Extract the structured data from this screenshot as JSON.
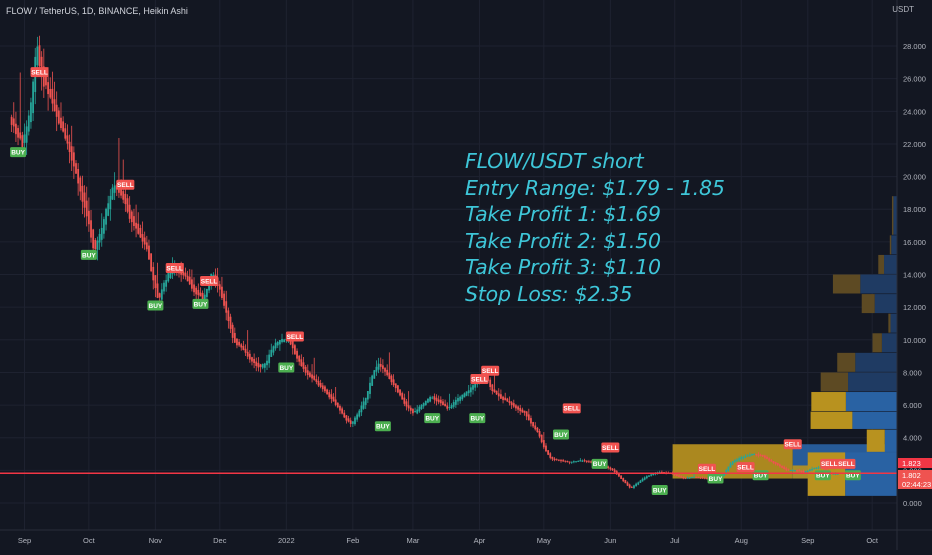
{
  "header": {
    "symbol_title": "FLOW / TetherUS, 1D, BINANCE, Heikin Ashi",
    "currency": "USDT"
  },
  "annotation": {
    "lines": [
      "FLOW/USDT short",
      "Entry Range: $1.79 - 1.85",
      "Take Profit 1: $1.69",
      "Take Profit 2: $1.50",
      "Take Profit 3: $1.10",
      "Stop Loss: $2.35"
    ],
    "color": "#3ec6d8"
  },
  "price_labels": {
    "upper": "1.823",
    "current": "1.802",
    "countdown": "02:44:23"
  },
  "colors": {
    "background": "#131722",
    "grid": "#1e2230",
    "up_candle": "#26a69a",
    "down_candle": "#ef5350",
    "buy_label": "#4caf50",
    "sell_label": "#f05350",
    "support_line": "#f23645",
    "profile_blue": "#2962a3",
    "profile_gold": "#b8921f",
    "profile_dark_gold": "#5d4a23",
    "profile_dark_blue": "#1f3b63"
  },
  "chart_data": {
    "type": "candlestick",
    "title": "FLOW / TetherUS, 1D, BINANCE, Heikin Ashi",
    "ylabel": "USDT",
    "y_ticks": [
      "0.000",
      "2.000",
      "4.000",
      "6.000",
      "8.000",
      "10.000",
      "12.000",
      "14.000",
      "16.000",
      "18.000",
      "20.000",
      "22.000",
      "24.000",
      "26.000",
      "28.000"
    ],
    "y_tick_values": [
      0,
      2,
      4,
      6,
      8,
      10,
      12,
      14,
      16,
      18,
      20,
      22,
      24,
      26,
      28
    ],
    "ylim": [
      -1.3,
      31.5
    ],
    "x_ticks": [
      "Sep",
      "Oct",
      "Nov",
      "Dec",
      "2022",
      "Feb",
      "Mar",
      "Apr",
      "May",
      "Jun",
      "Jul",
      "Aug",
      "Sep",
      "Oct"
    ],
    "x_tick_days": [
      0,
      30,
      61,
      91,
      122,
      153,
      181,
      212,
      242,
      273,
      303,
      334,
      365,
      395
    ],
    "x_start": "2021-09-01",
    "x_end": "2022-10-27",
    "price_path": [
      [
        -6,
        23.5
      ],
      [
        0,
        22.0
      ],
      [
        4,
        24.5
      ],
      [
        6,
        28.0
      ],
      [
        9,
        26.0
      ],
      [
        11,
        25.5
      ],
      [
        14,
        24.5
      ],
      [
        18,
        23.0
      ],
      [
        22,
        21.5
      ],
      [
        26,
        19.5
      ],
      [
        30,
        17.5
      ],
      [
        33,
        15.5
      ],
      [
        36,
        16.5
      ],
      [
        40,
        18.5
      ],
      [
        42,
        19.5
      ],
      [
        46,
        19.0
      ],
      [
        50,
        17.5
      ],
      [
        54,
        16.5
      ],
      [
        58,
        15.5
      ],
      [
        60,
        14.0
      ],
      [
        63,
        12.5
      ],
      [
        66,
        13.5
      ],
      [
        70,
        14.5
      ],
      [
        75,
        14.0
      ],
      [
        80,
        13.0
      ],
      [
        84,
        12.5
      ],
      [
        88,
        14.0
      ],
      [
        92,
        13.0
      ],
      [
        95,
        11.5
      ],
      [
        98,
        10.0
      ],
      [
        102,
        9.5
      ],
      [
        106,
        8.8
      ],
      [
        110,
        8.3
      ],
      [
        113,
        8.5
      ],
      [
        116,
        9.5
      ],
      [
        120,
        10.0
      ],
      [
        124,
        10.0
      ],
      [
        128,
        8.8
      ],
      [
        132,
        8.0
      ],
      [
        136,
        7.5
      ],
      [
        140,
        7.0
      ],
      [
        146,
        6.0
      ],
      [
        150,
        5.2
      ],
      [
        153,
        4.8
      ],
      [
        156,
        5.5
      ],
      [
        160,
        6.5
      ],
      [
        163,
        8.0
      ],
      [
        166,
        8.5
      ],
      [
        170,
        7.8
      ],
      [
        174,
        7.0
      ],
      [
        178,
        6.0
      ],
      [
        182,
        5.5
      ],
      [
        186,
        6.0
      ],
      [
        190,
        6.5
      ],
      [
        194,
        6.2
      ],
      [
        198,
        5.8
      ],
      [
        202,
        6.3
      ],
      [
        207,
        6.8
      ],
      [
        212,
        7.5
      ],
      [
        215,
        8.0
      ],
      [
        218,
        7.0
      ],
      [
        222,
        6.5
      ],
      [
        226,
        6.2
      ],
      [
        230,
        5.8
      ],
      [
        234,
        5.5
      ],
      [
        237,
        4.8
      ],
      [
        240,
        4.3
      ],
      [
        243,
        3.3
      ],
      [
        246,
        2.7
      ],
      [
        250,
        2.6
      ],
      [
        255,
        2.5
      ],
      [
        260,
        2.6
      ],
      [
        265,
        2.5
      ],
      [
        270,
        2.3
      ],
      [
        275,
        2.0
      ],
      [
        280,
        1.3
      ],
      [
        283,
        0.9
      ],
      [
        286,
        1.2
      ],
      [
        290,
        1.6
      ],
      [
        296,
        1.9
      ],
      [
        302,
        1.8
      ],
      [
        308,
        1.5
      ],
      [
        312,
        1.6
      ],
      [
        318,
        1.5
      ],
      [
        322,
        1.5
      ],
      [
        326,
        1.7
      ],
      [
        330,
        2.5
      ],
      [
        335,
        2.8
      ],
      [
        340,
        3.0
      ],
      [
        344,
        2.9
      ],
      [
        348,
        2.6
      ],
      [
        352,
        2.3
      ],
      [
        356,
        2.0
      ],
      [
        360,
        2.0
      ],
      [
        364,
        1.9
      ],
      [
        368,
        2.1
      ],
      [
        372,
        2.2
      ],
      [
        376,
        1.8
      ],
      [
        379,
        1.8
      ]
    ],
    "buy_signals": [
      {
        "label": "BUY",
        "date": "2021-08-29",
        "price": 21.5
      },
      {
        "label": "BUY",
        "date": "2021-10-01",
        "price": 15.2
      },
      {
        "label": "BUY",
        "date": "2021-11-01",
        "price": 12.1
      },
      {
        "label": "BUY",
        "date": "2021-11-22",
        "price": 12.2
      },
      {
        "label": "BUY",
        "date": "2022-01-01",
        "price": 8.3
      },
      {
        "label": "BUY",
        "date": "2022-02-15",
        "price": 4.7
      },
      {
        "label": "BUY",
        "date": "2022-03-10",
        "price": 5.2
      },
      {
        "label": "BUY",
        "date": "2022-03-31",
        "price": 5.2
      },
      {
        "label": "BUY",
        "date": "2022-05-09",
        "price": 4.2
      },
      {
        "label": "BUY",
        "date": "2022-05-27",
        "price": 2.4
      },
      {
        "label": "BUY",
        "date": "2022-06-24",
        "price": 0.8
      },
      {
        "label": "BUY",
        "date": "2022-07-20",
        "price": 1.5
      },
      {
        "label": "BUY",
        "date": "2022-08-10",
        "price": 1.7
      },
      {
        "label": "BUY",
        "date": "2022-09-08",
        "price": 1.7
      },
      {
        "label": "BUY",
        "date": "2022-09-22",
        "price": 1.7
      }
    ],
    "sell_signals": [
      {
        "label": "SELL",
        "date": "2021-09-08",
        "price": 26.4
      },
      {
        "label": "SELL",
        "date": "2021-10-18",
        "price": 19.5
      },
      {
        "label": "SELL",
        "date": "2021-11-10",
        "price": 14.4
      },
      {
        "label": "SELL",
        "date": "2021-11-26",
        "price": 13.6
      },
      {
        "label": "SELL",
        "date": "2022-01-05",
        "price": 10.2
      },
      {
        "label": "SELL",
        "date": "2022-04-01",
        "price": 7.6
      },
      {
        "label": "SELL",
        "date": "2022-04-06",
        "price": 8.1
      },
      {
        "label": "SELL",
        "date": "2022-05-14",
        "price": 5.8
      },
      {
        "label": "SELL",
        "date": "2022-06-01",
        "price": 3.4
      },
      {
        "label": "SELL",
        "date": "2022-07-16",
        "price": 2.1
      },
      {
        "label": "SELL",
        "date": "2022-08-03",
        "price": 2.2
      },
      {
        "label": "SELL",
        "date": "2022-08-25",
        "price": 3.6
      },
      {
        "label": "SELL",
        "date": "2022-09-11",
        "price": 2.4
      },
      {
        "label": "SELL",
        "date": "2022-09-19",
        "price": 2.4
      }
    ],
    "support_level": 1.82,
    "volume_profile": [
      {
        "price_low": 0.4,
        "price_high": 3.1,
        "up": 0.52,
        "down": 0.72
      },
      {
        "price_low": 3.1,
        "price_high": 4.5,
        "up": 0.25,
        "down": 0.17
      },
      {
        "price_low": 4.5,
        "price_high": 5.6,
        "up": 0.58,
        "down": 0.62
      },
      {
        "price_low": 5.6,
        "price_high": 6.8,
        "up": 0.48,
        "down": 0.71
      },
      {
        "price_low": 6.8,
        "price_high": 8.0,
        "up": 0.38,
        "down": 0.68
      },
      {
        "price_low": 8.0,
        "price_high": 9.2,
        "up": 0.25,
        "down": 0.58
      },
      {
        "price_low": 9.2,
        "price_high": 10.4,
        "up": 0.13,
        "down": 0.21
      },
      {
        "price_low": 10.4,
        "price_high": 11.6,
        "up": 0.03,
        "down": 0.09
      },
      {
        "price_low": 11.6,
        "price_high": 12.8,
        "up": 0.18,
        "down": 0.31
      },
      {
        "price_low": 12.8,
        "price_high": 14.0,
        "up": 0.38,
        "down": 0.51
      },
      {
        "price_low": 14.0,
        "price_high": 15.2,
        "up": 0.08,
        "down": 0.18
      },
      {
        "price_low": 15.2,
        "price_high": 16.4,
        "up": 0.02,
        "down": 0.08
      },
      {
        "price_low": 16.4,
        "price_high": 18.8,
        "up": 0.02,
        "down": 0.05
      }
    ],
    "range_boxes": [
      {
        "start": "2022-06-30",
        "end": "2022-08-25",
        "price_low": 1.5,
        "price_high": 3.6,
        "fill": "gold"
      },
      {
        "start": "2022-08-25",
        "end": "2022-10-31",
        "price_low": 1.5,
        "price_high": 3.6,
        "fill": "blue"
      }
    ],
    "grid": true
  }
}
